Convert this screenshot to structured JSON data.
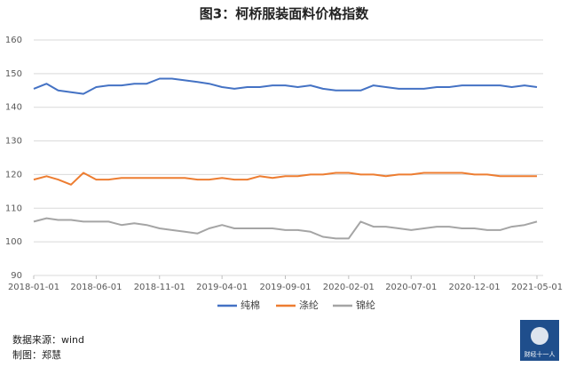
{
  "chart_data": {
    "type": "line",
    "title": "图3：柯桥服装面料价格指数",
    "x": [
      "2018-01-01",
      "2018-02-01",
      "2018-03-01",
      "2018-04-01",
      "2018-05-01",
      "2018-06-01",
      "2018-07-01",
      "2018-08-01",
      "2018-09-01",
      "2018-10-01",
      "2018-11-01",
      "2018-12-01",
      "2019-01-01",
      "2019-02-01",
      "2019-03-01",
      "2019-04-01",
      "2019-05-01",
      "2019-06-01",
      "2019-07-01",
      "2019-08-01",
      "2019-09-01",
      "2019-10-01",
      "2019-11-01",
      "2019-12-01",
      "2020-01-01",
      "2020-02-01",
      "2020-03-01",
      "2020-04-01",
      "2020-05-01",
      "2020-06-01",
      "2020-07-01",
      "2020-08-01",
      "2020-09-01",
      "2020-10-01",
      "2020-11-01",
      "2020-12-01",
      "2021-01-01",
      "2021-02-01",
      "2021-03-01",
      "2021-04-01",
      "2021-05-01"
    ],
    "series": [
      {
        "name": "纯棉",
        "color": "#4472c4",
        "values": [
          145.5,
          147,
          145,
          144.5,
          144,
          146,
          146.5,
          146.5,
          147,
          147,
          148.5,
          148.5,
          148,
          147.5,
          147,
          146,
          145.5,
          146,
          146,
          146.5,
          146.5,
          146,
          146.5,
          145.5,
          145,
          145,
          145,
          146.5,
          146,
          145.5,
          145.5,
          145.5,
          146,
          146,
          146.5,
          146.5,
          146.5,
          146.5,
          146,
          146.5,
          146
        ]
      },
      {
        "name": "涤纶",
        "color": "#ed7d31",
        "values": [
          118.5,
          119.5,
          118.5,
          117,
          120.5,
          118.5,
          118.5,
          119,
          119,
          119,
          119,
          119,
          119,
          118.5,
          118.5,
          119,
          118.5,
          118.5,
          119.5,
          119,
          119.5,
          119.5,
          120,
          120,
          120.5,
          120.5,
          120,
          120,
          119.5,
          120,
          120,
          120.5,
          120.5,
          120.5,
          120.5,
          120,
          120,
          119.5,
          119.5,
          119.5,
          119.5
        ]
      },
      {
        "name": "锦纶",
        "color": "#a5a5a5",
        "values": [
          106,
          107,
          106.5,
          106.5,
          106,
          106,
          106,
          105,
          105.5,
          105,
          104,
          103.5,
          103,
          102.5,
          104,
          105,
          104,
          104,
          104,
          104,
          103.5,
          103.5,
          103,
          101.5,
          101,
          101,
          106,
          104.5,
          104.5,
          104,
          103.5,
          104,
          104.5,
          104.5,
          104,
          104,
          103.5,
          103.5,
          104.5,
          105,
          106
        ]
      }
    ],
    "xlim": [
      "2018-01-01",
      "2021-05-01"
    ],
    "xticks": [
      "2018-01-01",
      "2018-06-01",
      "2018-11-01",
      "2019-04-01",
      "2019-09-01",
      "2020-02-01",
      "2020-07-01",
      "2020-12-01",
      "2021-05-01"
    ],
    "ylim": [
      90,
      160
    ],
    "yticks": [
      90,
      100,
      110,
      120,
      130,
      140,
      150,
      160
    ],
    "grid": true,
    "legend": "bottom",
    "source": "数据来源：wind",
    "author": "制图：郑慧",
    "logo": "财经十一人"
  }
}
